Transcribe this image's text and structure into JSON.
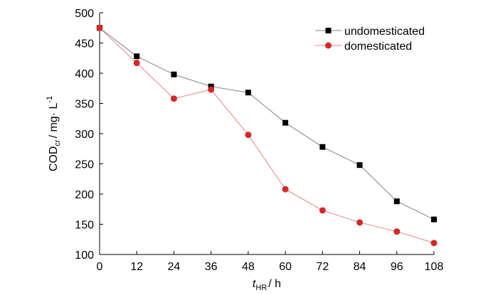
{
  "chart_data": {
    "type": "line",
    "x": [
      0,
      12,
      24,
      36,
      48,
      60,
      72,
      84,
      96,
      108
    ],
    "series": [
      {
        "name": "undomesticated",
        "values": [
          475,
          428,
          398,
          378,
          368,
          318,
          278,
          248,
          188,
          158
        ],
        "color": "#808080",
        "marker": "square",
        "marker_color": "#000000"
      },
      {
        "name": "domesticated",
        "values": [
          475,
          417,
          358,
          373,
          298,
          208,
          173,
          153,
          138,
          119
        ],
        "color": "#e88080",
        "marker": "circle",
        "marker_color": "#d62728"
      }
    ],
    "xlabel": {
      "italic": "t",
      "sub": "HR",
      "rest": "/ h"
    },
    "ylabel": {
      "base": "COD",
      "sub": "cr",
      "rest": "/ mg· L",
      "sup": "-1"
    },
    "xlim": [
      0,
      108
    ],
    "ylim": [
      100,
      500
    ],
    "xticks": [
      "0",
      "12",
      "24",
      "36",
      "48",
      "60",
      "72",
      "84",
      "96",
      "108"
    ],
    "yticks": [
      "100",
      "150",
      "200",
      "250",
      "300",
      "350",
      "400",
      "450",
      "500"
    ],
    "grid": false,
    "legend": "top-right"
  }
}
